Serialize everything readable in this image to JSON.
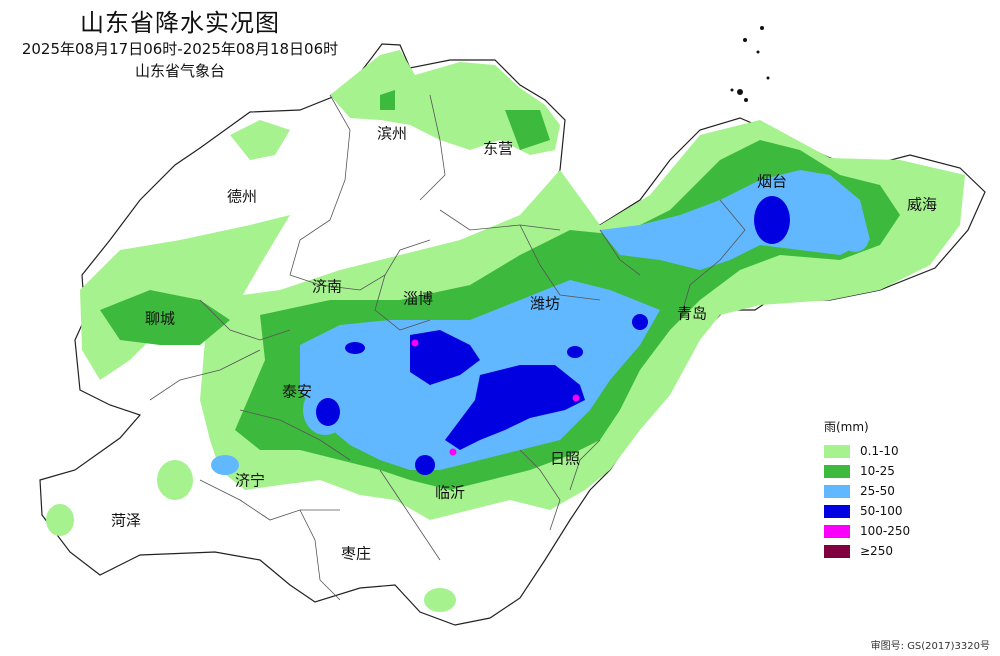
{
  "header": {
    "title": "山东省降水实况图",
    "time_range": "2025年08月17日06时-2025年08月18日06时",
    "agency": "山东省气象台"
  },
  "cities": [
    {
      "id": "binzhou",
      "name": "滨州"
    },
    {
      "id": "dongying",
      "name": "东营"
    },
    {
      "id": "dezhou",
      "name": "德州"
    },
    {
      "id": "yantai",
      "name": "烟台"
    },
    {
      "id": "weihai",
      "name": "威海"
    },
    {
      "id": "jinan",
      "name": "济南"
    },
    {
      "id": "zibo",
      "name": "淄博"
    },
    {
      "id": "weifang",
      "name": "潍坊"
    },
    {
      "id": "qingdao",
      "name": "青岛"
    },
    {
      "id": "liaocheng",
      "name": "聊城"
    },
    {
      "id": "taian",
      "name": "泰安"
    },
    {
      "id": "rizhao",
      "name": "日照"
    },
    {
      "id": "jining",
      "name": "济宁"
    },
    {
      "id": "linyi",
      "name": "临沂"
    },
    {
      "id": "heze",
      "name": "菏泽"
    },
    {
      "id": "zaozhuang",
      "name": "枣庄"
    }
  ],
  "legend": {
    "title": "雨(mm)",
    "items": [
      {
        "label": "0.1-10",
        "color": "#a6f28f"
      },
      {
        "label": "10-25",
        "color": "#3dba3d"
      },
      {
        "label": "25-50",
        "color": "#61b8ff"
      },
      {
        "label": "50-100",
        "color": "#0000e1"
      },
      {
        "label": "100-250",
        "color": "#fa00fa"
      },
      {
        "label": "≥250",
        "color": "#800040"
      }
    ]
  },
  "approval_number": "审图号: GS(2017)3320号"
}
